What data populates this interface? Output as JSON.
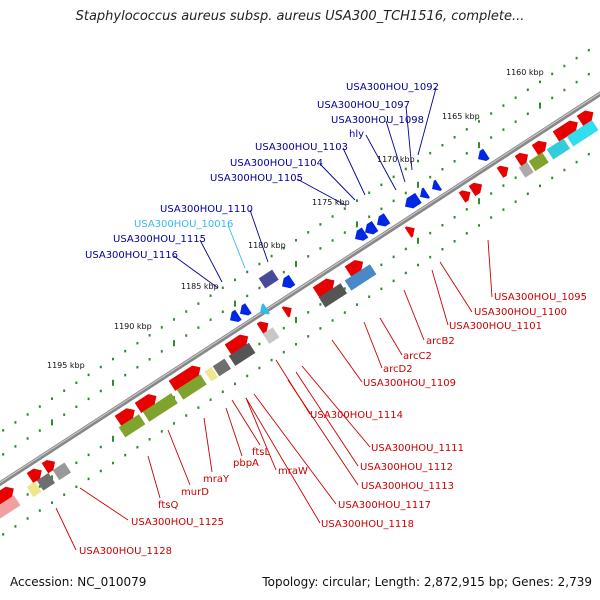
{
  "title": "Staphylococcus aureus subsp. aureus USA300_TCH1516, complete...",
  "footer": {
    "accession_label": "Accession:",
    "accession": "NC_010079",
    "topology_label": "Topology:",
    "topology": "circular",
    "length_label": "Length:",
    "length": "2,872,915 bp",
    "genes_label": "Genes:",
    "genes": "2,739"
  },
  "kbp_labels": [
    "1160 kbp",
    "1165 kbp",
    "1170 kbp",
    "1175 kbp",
    "1180 kbp",
    "1185 kbp",
    "1190 kbp",
    "1195 kbp"
  ],
  "upper_labels": [
    "USA300HOU_1092",
    "USA300HOU_1097",
    "USA300HOU_1098",
    "hly",
    "USA300HOU_1103",
    "USA300HOU_1104",
    "USA300HOU_1105",
    "USA300HOU_1110",
    "USA300HOU_10016",
    "USA300HOU_1115",
    "USA300HOU_1116"
  ],
  "lower_labels": [
    "USA300HOU_1095",
    "USA300HOU_1100",
    "USA300HOU_1101",
    "arcB2",
    "arcC2",
    "arcD2",
    "USA300HOU_1109",
    "USA300HOU_1114",
    "USA300HOU_1111",
    "USA300HOU_1112",
    "USA300HOU_1113",
    "USA300HOU_1117",
    "USA300HOU_1118",
    "ftsL",
    "mraW",
    "pbpA",
    "mraY",
    "murD",
    "ftsQ",
    "USA300HOU_1125",
    "USA300HOU_1128"
  ],
  "colors": {
    "backbone": "#8a8a8a",
    "tick": "#2e8b2e",
    "forward_gene": "#e80000",
    "reverse_gene": "#0026e6",
    "light_blue": "#33bbee",
    "olive": "#7fa32c",
    "grey": "#6e6e6e",
    "dark_grey": "#555555",
    "yellow": "#f0e68c",
    "upper_label": "#000099",
    "lower_label": "#cc0000"
  }
}
